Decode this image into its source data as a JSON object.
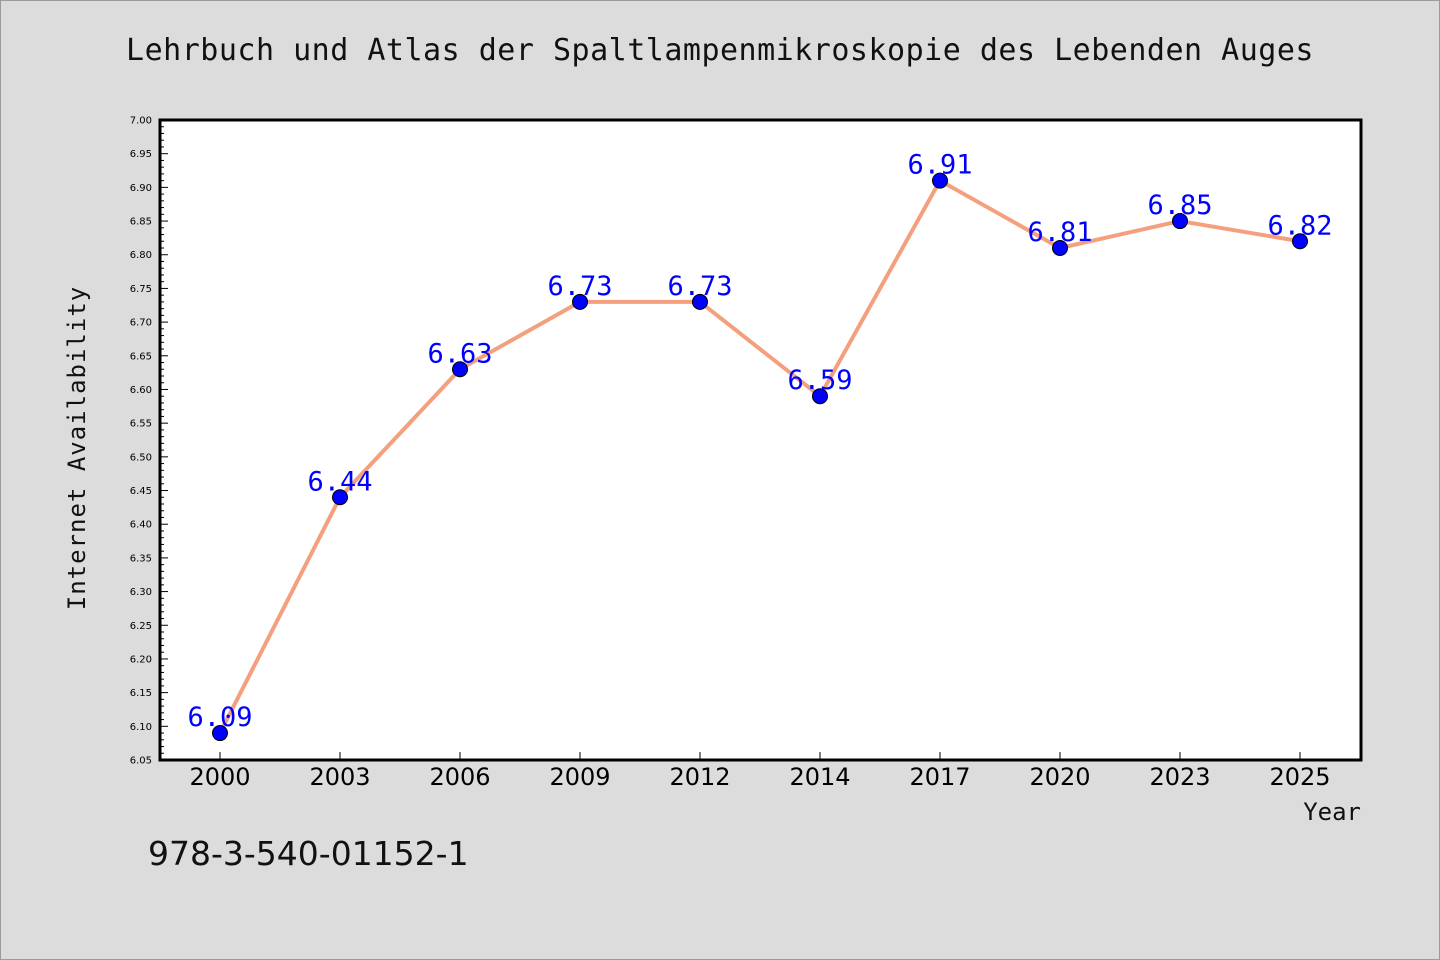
{
  "chart_data": {
    "type": "line",
    "title": "Lehrbuch und Atlas der Spaltlampenmikroskopie des Lebenden Auges",
    "xlabel": "Year",
    "ylabel": "Internet Availability",
    "categories": [
      "2000",
      "2003",
      "2006",
      "2009",
      "2012",
      "2014",
      "2017",
      "2020",
      "2023",
      "2025"
    ],
    "series": [
      {
        "values": [
          6.09,
          6.44,
          6.63,
          6.73,
          6.73,
          6.59,
          6.91,
          6.81,
          6.85,
          6.82
        ]
      }
    ],
    "data_labels": [
      "6.09",
      "6.44",
      "6.63",
      "6.73",
      "6.73",
      "6.59",
      "6.91",
      "6.81",
      "6.85",
      "6.82"
    ],
    "ylim": [
      6.05,
      7.0
    ],
    "yticks": [
      "6.05",
      "6.10",
      "6.15",
      "6.20",
      "6.25",
      "6.30",
      "6.35",
      "6.40",
      "6.45",
      "6.50",
      "6.55",
      "6.60",
      "6.65",
      "6.70",
      "6.75",
      "6.80",
      "6.85",
      "6.90",
      "6.95",
      "7.00"
    ],
    "grid": false,
    "legend": "none",
    "colors": {
      "line": "#f4a07e",
      "marker": "#0000ff",
      "label": "#0000ff",
      "background": "#dcdcdc",
      "plot_bg": "#ffffff"
    }
  },
  "footer": {
    "isbn": "978-3-540-01152-1"
  }
}
